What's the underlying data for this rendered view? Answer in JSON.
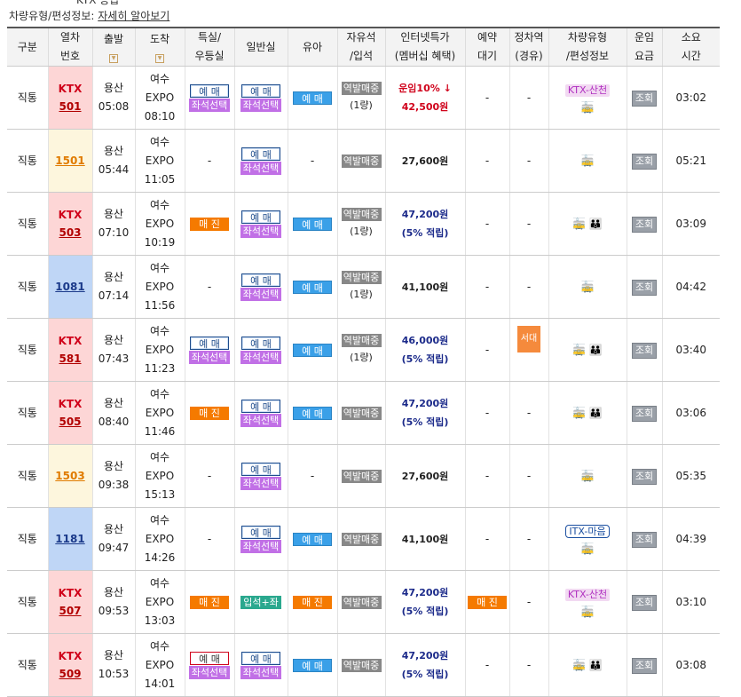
{
  "header": {
    "cut_text": "KTX 등급",
    "info_label": "차량유형/편성정보: ",
    "info_link": "자세히 알아보기"
  },
  "columns": {
    "type": "구분",
    "train_no": [
      "열차",
      "번호"
    ],
    "departure": "출발",
    "arrival": "도착",
    "special": [
      "특실/",
      "우등실"
    ],
    "general": "일반실",
    "infant": "유아",
    "free": [
      "자유석",
      "/입석"
    ],
    "internet": [
      "인터넷특가",
      "(멤버십 혜택)"
    ],
    "reserve_wait": [
      "예약",
      "대기"
    ],
    "stop": [
      "정차역",
      "(경유)"
    ],
    "vehicle": [
      "차량유형",
      "/편성정보"
    ],
    "fare": [
      "운임",
      "요금"
    ],
    "duration": [
      "소요",
      "시간"
    ]
  },
  "labels": {
    "reserve": "예 매",
    "seat_select": "좌석선택",
    "sold_out": "매 진",
    "standing_seat": "입석+좌석",
    "station_sale": "역발매중",
    "one_car": "(1량)",
    "dash": "-",
    "discount_prefix": "운임",
    "discount_value": "10%",
    "discount_arrow": "↓",
    "points": "(5% 적립)",
    "view": "조회",
    "stop_badge": "서대전"
  },
  "rows": [
    {
      "type": "직통",
      "kind": "KTX",
      "no": "501",
      "dep": "용산",
      "dep_time": "05:08",
      "arr_1": "여수",
      "arr_2": "EXPO",
      "arr_time": "08:10",
      "price": "42,500원",
      "duration": "03:02",
      "tag": "KTX-산천",
      "icons": "🚋"
    },
    {
      "type": "직통",
      "kind": "",
      "no": "1501",
      "dep": "용산",
      "dep_time": "05:44",
      "arr_1": "여수",
      "arr_2": "EXPO",
      "arr_time": "11:05",
      "price": "27,600원",
      "duration": "05:21",
      "tag": "",
      "icons": "🚋"
    },
    {
      "type": "직통",
      "kind": "KTX",
      "no": "503",
      "dep": "용산",
      "dep_time": "07:10",
      "arr_1": "여수",
      "arr_2": "EXPO",
      "arr_time": "10:19",
      "price": "47,200원",
      "duration": "03:09",
      "tag": "",
      "icons": "🚋 👪"
    },
    {
      "type": "직통",
      "kind": "",
      "no": "1081",
      "dep": "용산",
      "dep_time": "07:14",
      "arr_1": "여수",
      "arr_2": "EXPO",
      "arr_time": "11:56",
      "price": "41,100원",
      "duration": "04:42",
      "tag": "",
      "icons": "🚋"
    },
    {
      "type": "직통",
      "kind": "KTX",
      "no": "581",
      "dep": "용산",
      "dep_time": "07:43",
      "arr_1": "여수",
      "arr_2": "EXPO",
      "arr_time": "11:23",
      "price": "46,000원",
      "duration": "03:40",
      "tag": "",
      "icons": "🚋 👪"
    },
    {
      "type": "직통",
      "kind": "KTX",
      "no": "505",
      "dep": "용산",
      "dep_time": "08:40",
      "arr_1": "여수",
      "arr_2": "EXPO",
      "arr_time": "11:46",
      "price": "47,200원",
      "duration": "03:06",
      "tag": "",
      "icons": "🚋 👪"
    },
    {
      "type": "직통",
      "kind": "",
      "no": "1503",
      "dep": "용산",
      "dep_time": "09:38",
      "arr_1": "여수",
      "arr_2": "EXPO",
      "arr_time": "15:13",
      "price": "27,600원",
      "duration": "05:35",
      "tag": "",
      "icons": "🚋"
    },
    {
      "type": "직통",
      "kind": "",
      "no": "1181",
      "dep": "용산",
      "dep_time": "09:47",
      "arr_1": "여수",
      "arr_2": "EXPO",
      "arr_time": "14:26",
      "price": "41,100원",
      "duration": "04:39",
      "tag": "ITX-마음",
      "icons": "🚋"
    },
    {
      "type": "직통",
      "kind": "KTX",
      "no": "507",
      "dep": "용산",
      "dep_time": "09:53",
      "arr_1": "여수",
      "arr_2": "EXPO",
      "arr_time": "13:03",
      "price": "47,200원",
      "duration": "03:10",
      "tag": "KTX-산천",
      "icons": "🚋"
    },
    {
      "type": "직통",
      "kind": "KTX",
      "no": "509",
      "dep": "용산",
      "dep_time": "10:53",
      "arr_1": "여수",
      "arr_2": "EXPO",
      "arr_time": "14:01",
      "price": "47,200원",
      "duration": "03:08",
      "tag": "",
      "icons": "🚋 👪"
    }
  ]
}
